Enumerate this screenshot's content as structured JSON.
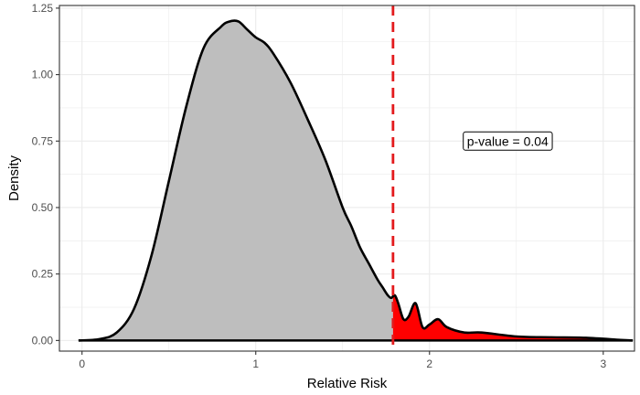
{
  "chart_data": {
    "type": "area",
    "xlabel": "Relative Risk",
    "ylabel": "Density",
    "xlim": [
      -0.13,
      3.18
    ],
    "ylim": [
      -0.04,
      1.26
    ],
    "x_ticks": [
      0,
      1,
      2,
      3
    ],
    "x_tick_labels": [
      "0",
      "1",
      "2",
      "3"
    ],
    "y_ticks": [
      0,
      0.25,
      0.5,
      0.75,
      1.0,
      1.25
    ],
    "y_tick_labels": [
      "0.00",
      "0.25",
      "0.50",
      "0.75",
      "1.00",
      "1.25"
    ],
    "grid": true,
    "threshold": 1.79,
    "annotation": {
      "text": "p-value = 0.04",
      "x": 2.45,
      "y": 0.75
    },
    "series": [
      {
        "x": [
          -0.02,
          0.1,
          0.2,
          0.3,
          0.4,
          0.5,
          0.6,
          0.7,
          0.8,
          0.85,
          0.9,
          0.95,
          1.0,
          1.05,
          1.1,
          1.2,
          1.3,
          1.4,
          1.5,
          1.55,
          1.6,
          1.65,
          1.7,
          1.73,
          1.76,
          1.78,
          1.8,
          1.82,
          1.85,
          1.88,
          1.92,
          1.96,
          2.0,
          2.05,
          2.1,
          2.2,
          2.3,
          2.5,
          2.7,
          2.9,
          3.1,
          3.17
        ],
        "y": [
          0.0,
          0.005,
          0.03,
          0.12,
          0.32,
          0.6,
          0.88,
          1.1,
          1.18,
          1.2,
          1.2,
          1.17,
          1.14,
          1.12,
          1.08,
          0.97,
          0.83,
          0.68,
          0.5,
          0.43,
          0.35,
          0.29,
          0.23,
          0.2,
          0.17,
          0.16,
          0.17,
          0.14,
          0.08,
          0.09,
          0.14,
          0.05,
          0.06,
          0.08,
          0.05,
          0.03,
          0.03,
          0.015,
          0.012,
          0.01,
          0.002,
          0.0
        ]
      }
    ],
    "colors": {
      "left_fill": "#bebebe",
      "right_fill": "#ff0000",
      "curve": "#000000",
      "threshold_line": "#e31a1c",
      "grid": "#ebebeb",
      "panel_border": "#333333"
    }
  }
}
